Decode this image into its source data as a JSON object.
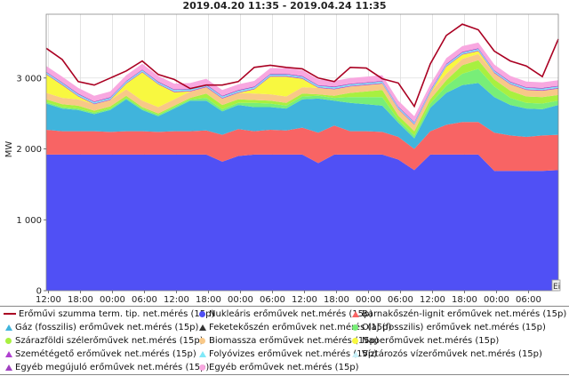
{
  "chart_data": {
    "type": "area",
    "title": "2019.04.20 11:35 - 2019.04.24 11:35",
    "ylabel": "MW",
    "ylim": [
      0,
      3900
    ],
    "y_ticks": [
      0,
      1000,
      2000,
      3000
    ],
    "y_tick_labels": [
      "0",
      "1 000",
      "2 000",
      "3 000"
    ],
    "x_ticks": [
      0.4,
      6.4,
      12.4,
      18.4,
      24.4,
      30.4,
      36.4,
      42.4,
      48.4,
      54.4,
      60.4,
      66.4,
      72.4,
      78.4,
      84.4,
      90.4
    ],
    "x_tick_labels": [
      "12:00",
      "18:00",
      "00:00",
      "06:00",
      "12:00",
      "18:00",
      "00:00",
      "06:00",
      "12:00",
      "18:00",
      "00:00",
      "06:00",
      "12:00",
      "18:00",
      "00:00",
      "06:00"
    ],
    "xlim": [
      0,
      96
    ],
    "x_hours_since_start": [
      0,
      3,
      6,
      9,
      12,
      15,
      18,
      21,
      24,
      27,
      30,
      33,
      36,
      39,
      42,
      45,
      48,
      51,
      54,
      57,
      60,
      63,
      66,
      69,
      72,
      75,
      78,
      81,
      84,
      87,
      90,
      93,
      96
    ],
    "series": [
      {
        "name": "Nukleáris erőművek net.mérés (15p)",
        "color": "#5050f5",
        "values": [
          1920,
          1920,
          1920,
          1920,
          1920,
          1920,
          1920,
          1920,
          1920,
          1920,
          1920,
          1820,
          1900,
          1920,
          1920,
          1920,
          1920,
          1800,
          1920,
          1920,
          1920,
          1920,
          1850,
          1700,
          1920,
          1920,
          1920,
          1920,
          1690,
          1690,
          1690,
          1690,
          1700
        ]
      },
      {
        "name": "Barnakőszén-lignit erőművek net.mérés (15p)",
        "color": "#f86464",
        "values": [
          350,
          330,
          330,
          330,
          320,
          330,
          330,
          320,
          330,
          330,
          340,
          380,
          380,
          330,
          350,
          340,
          380,
          430,
          410,
          330,
          330,
          320,
          320,
          300,
          330,
          420,
          460,
          460,
          540,
          500,
          480,
          500,
          500
        ]
      },
      {
        "name": "Gáz (fosszilis) erőművek net.mérés (15p)",
        "color": "#40b4dc",
        "values": [
          370,
          320,
          300,
          240,
          310,
          450,
          300,
          220,
          320,
          430,
          420,
          330,
          340,
          340,
          320,
          310,
          400,
          480,
          350,
          400,
          380,
          370,
          200,
          150,
          330,
          450,
          520,
          550,
          500,
          430,
          400,
          370,
          420
        ]
      },
      {
        "name": "Feketekőszén erőművek net.mérés (15p)",
        "color": "#333333",
        "values": [
          0,
          0,
          0,
          0,
          0,
          0,
          0,
          0,
          0,
          0,
          0,
          0,
          0,
          0,
          0,
          0,
          0,
          0,
          0,
          0,
          0,
          0,
          0,
          0,
          0,
          0,
          0,
          0,
          0,
          0,
          0,
          0,
          0
        ]
      },
      {
        "name": "Olaj (fosszilis) erőművek net.mérés (15p)",
        "color": "#78ee78",
        "values": [
          20,
          20,
          20,
          20,
          20,
          20,
          20,
          20,
          20,
          20,
          40,
          30,
          30,
          60,
          50,
          40,
          40,
          40,
          40,
          80,
          100,
          120,
          40,
          40,
          60,
          100,
          160,
          200,
          150,
          100,
          80,
          80,
          60
        ]
      },
      {
        "name": "Száraz­földi szélerőművek net.mérés (15p)",
        "color": "#a8f040",
        "values": [
          40,
          40,
          40,
          30,
          30,
          30,
          20,
          20,
          20,
          20,
          60,
          60,
          50,
          40,
          40,
          40,
          40,
          20,
          30,
          60,
          80,
          100,
          60,
          60,
          60,
          80,
          120,
          120,
          100,
          100,
          90,
          90,
          80
        ]
      },
      {
        "name": "Biomassza erőművek net.mérés (15p)",
        "color": "#f8c888",
        "values": [
          90,
          90,
          90,
          90,
          90,
          90,
          90,
          90,
          90,
          90,
          90,
          90,
          90,
          90,
          90,
          90,
          90,
          90,
          90,
          90,
          90,
          90,
          90,
          90,
          90,
          90,
          90,
          90,
          90,
          90,
          90,
          90,
          90
        ]
      },
      {
        "name": "Naperőművek net.mérés (15p)",
        "color": "#f8f840",
        "values": [
          260,
          180,
          40,
          0,
          0,
          80,
          400,
          320,
          100,
          0,
          0,
          0,
          0,
          60,
          250,
          280,
          120,
          0,
          0,
          0,
          0,
          0,
          0,
          0,
          0,
          100,
          60,
          40,
          0,
          0,
          0,
          0,
          0
        ]
      },
      {
        "name": "Szemétégető erőművek net.mérés (15p)",
        "color": "#b040d0",
        "values": [
          10,
          10,
          10,
          10,
          10,
          10,
          10,
          10,
          10,
          10,
          10,
          10,
          10,
          10,
          10,
          10,
          10,
          10,
          10,
          10,
          10,
          10,
          10,
          10,
          10,
          10,
          10,
          10,
          10,
          10,
          10,
          10,
          10
        ]
      },
      {
        "name": "Folyóvizes erőművek net.mérés (15p)",
        "color": "#80e8f8",
        "values": [
          20,
          20,
          20,
          20,
          20,
          20,
          20,
          20,
          20,
          20,
          20,
          20,
          20,
          20,
          20,
          20,
          20,
          20,
          20,
          20,
          20,
          20,
          20,
          20,
          20,
          20,
          20,
          20,
          20,
          20,
          20,
          20,
          20
        ]
      },
      {
        "name": "Víztározós vízerőművek net.mérés (15p)",
        "color": "#c8f0f8",
        "values": [
          0,
          0,
          0,
          0,
          0,
          0,
          0,
          0,
          0,
          0,
          0,
          0,
          0,
          0,
          0,
          0,
          0,
          0,
          0,
          0,
          0,
          0,
          0,
          0,
          0,
          0,
          0,
          0,
          0,
          0,
          0,
          0,
          0
        ]
      },
      {
        "name": "Egyéb megújuló erőművek net.mérés (15p)",
        "color": "#a040c0",
        "values": [
          10,
          10,
          10,
          10,
          10,
          10,
          10,
          10,
          10,
          10,
          10,
          10,
          10,
          10,
          10,
          10,
          10,
          10,
          10,
          10,
          10,
          10,
          10,
          10,
          10,
          10,
          10,
          10,
          10,
          10,
          10,
          10,
          10
        ]
      },
      {
        "name": "Egyéb erőművek net.mérés (15p)",
        "color": "#f8a8e0",
        "values": [
          80,
          80,
          80,
          80,
          80,
          80,
          80,
          80,
          80,
          80,
          80,
          80,
          80,
          80,
          80,
          80,
          80,
          80,
          80,
          80,
          80,
          80,
          80,
          80,
          80,
          80,
          80,
          80,
          80,
          80,
          80,
          80,
          80
        ]
      }
    ],
    "total_line": {
      "name": "Erőművi szumma term. tip. net.mérés (15p)",
      "color": "#aa0022",
      "values": [
        3420,
        3260,
        2950,
        2900,
        3000,
        3100,
        3240,
        3050,
        2980,
        2850,
        2900,
        2900,
        2950,
        3150,
        3180,
        3150,
        3130,
        3000,
        2950,
        3150,
        3140,
        2990,
        2930,
        2600,
        3200,
        3600,
        3760,
        3680,
        3380,
        3240,
        3170,
        3020,
        3550
      ]
    }
  },
  "legend": {
    "rows": [
      [
        {
          "name": "Erőművi szumma term. tip. net.mérés (15p)",
          "color": "#aa0022",
          "shape": "line"
        },
        {
          "name": "Nukleáris erőművek net.mérés (15p)",
          "color": "#5050f5",
          "shape": "dot"
        },
        {
          "name": "Barnakőszén-lignit erőművek net.mérés (15p)",
          "color": "#f86464",
          "shape": "tri"
        }
      ],
      [
        {
          "name": "Gáz (fosszilis) erőművek net.mérés (15p)",
          "color": "#40b4dc",
          "shape": "tri"
        },
        {
          "name": "Feketekőszén erőművek net.mérés (15p)",
          "color": "#333333",
          "shape": "tri"
        },
        {
          "name": "Olaj (fosszilis) erőművek net.mérés (15p)",
          "color": "#78ee78",
          "shape": "dot"
        }
      ],
      [
        {
          "name": "Szárazföldi szélerőművek net.mérés (15p)",
          "color": "#a8f040",
          "shape": "dot"
        },
        {
          "name": "Biomassza erőművek net.mérés (15p)",
          "color": "#f8c888",
          "shape": "dot"
        },
        {
          "name": "Naperőművek net.mérés (15p)",
          "color": "#f8f840",
          "shape": "dot"
        }
      ],
      [
        {
          "name": "Szemétégető erőművek net.mérés (15p)",
          "color": "#b040d0",
          "shape": "tri"
        },
        {
          "name": "Folyóvizes erőművek net.mérés (15p)",
          "color": "#80e8f8",
          "shape": "tri"
        },
        {
          "name": "Víztározós vízerőművek net.mérés (15p)",
          "color": "#c8f0f8",
          "shape": "tri"
        }
      ],
      [
        {
          "name": "Egyéb megújuló erőművek net.mérés (15p)",
          "color": "#a040c0",
          "shape": "tri"
        },
        {
          "name": "Egyéb erőművek net.mérés (15p)",
          "color": "#f8a8e0",
          "shape": "dot"
        }
      ]
    ]
  },
  "corner_label": "Ei"
}
